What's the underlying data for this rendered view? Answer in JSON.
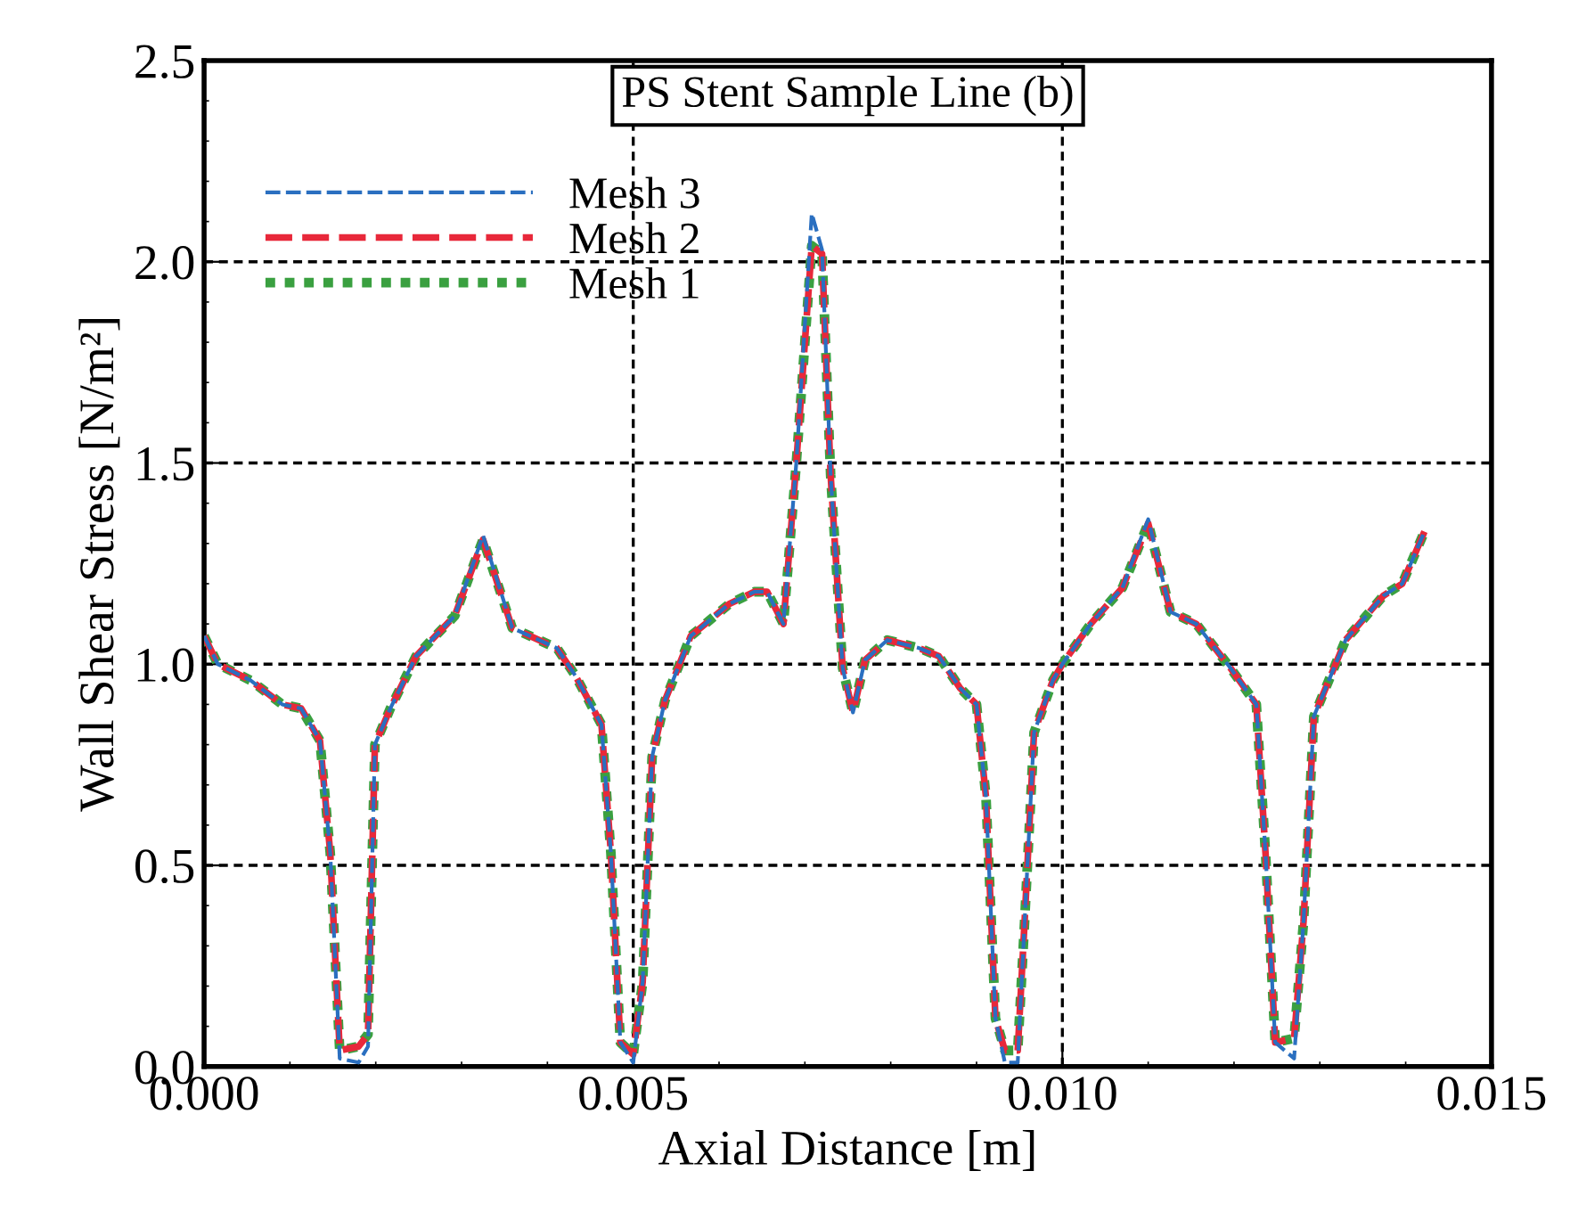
{
  "chart_data": {
    "type": "line",
    "title": "PS Stent Sample Line (b)",
    "xlabel": "Axial Distance [m]",
    "ylabel": "Wall Shear Stress [N/m²]",
    "x": [
      0,
      0.00016,
      0.00054,
      0.00091,
      0.00113,
      0.00135,
      0.00147,
      0.00158,
      0.0018,
      0.00191,
      0.00199,
      0.00217,
      0.00247,
      0.00292,
      0.00325,
      0.00359,
      0.00411,
      0.00433,
      0.00463,
      0.00474,
      0.00485,
      0.005,
      0.00511,
      0.00522,
      0.00537,
      0.00567,
      0.00612,
      0.00641,
      0.00656,
      0.00675,
      0.0069,
      0.00708,
      0.0072,
      0.0073,
      0.00744,
      0.00756,
      0.0077,
      0.00796,
      0.00833,
      0.00856,
      0.00881,
      0.009,
      0.00911,
      0.00922,
      0.00933,
      0.00948,
      0.00956,
      0.00967,
      0.00989,
      0.01,
      0.01033,
      0.0107,
      0.011,
      0.01126,
      0.01156,
      0.01196,
      0.01226,
      0.01237,
      0.01248,
      0.0127,
      0.01281,
      0.01293,
      0.0133,
      0.01374,
      0.01396,
      0.01422
    ],
    "series": [
      {
        "name": "Mesh 3",
        "color": "#2a6fc0",
        "line_style": "dashed",
        "values": [
          1.07,
          1.0,
          0.96,
          0.9,
          0.89,
          0.81,
          0.53,
          0.02,
          0.01,
          0.05,
          0.8,
          0.89,
          1.02,
          1.12,
          1.32,
          1.09,
          1.04,
          0.97,
          0.85,
          0.53,
          0.06,
          0.01,
          0.21,
          0.77,
          0.91,
          1.07,
          1.15,
          1.18,
          1.18,
          1.1,
          1.5,
          2.12,
          2.03,
          1.47,
          0.99,
          0.88,
          1.01,
          1.06,
          1.04,
          1.02,
          0.94,
          0.9,
          0.67,
          0.12,
          0.01,
          0.01,
          0.36,
          0.83,
          0.96,
          1.0,
          1.1,
          1.19,
          1.36,
          1.13,
          1.1,
          0.99,
          0.9,
          0.52,
          0.06,
          0.02,
          0.36,
          0.87,
          1.06,
          1.17,
          1.2,
          1.33
        ]
      },
      {
        "name": "Mesh 2",
        "color": "#e8283a",
        "line_style": "dashed",
        "values": [
          1.07,
          1.0,
          0.96,
          0.9,
          0.89,
          0.81,
          0.53,
          0.04,
          0.05,
          0.08,
          0.8,
          0.89,
          1.02,
          1.12,
          1.31,
          1.09,
          1.04,
          0.97,
          0.85,
          0.53,
          0.06,
          0.03,
          0.21,
          0.77,
          0.91,
          1.07,
          1.15,
          1.18,
          1.18,
          1.1,
          1.5,
          2.04,
          2.02,
          1.47,
          0.99,
          0.88,
          1.01,
          1.06,
          1.04,
          1.02,
          0.94,
          0.9,
          0.67,
          0.12,
          0.04,
          0.04,
          0.36,
          0.83,
          0.96,
          1.0,
          1.1,
          1.19,
          1.35,
          1.13,
          1.1,
          0.99,
          0.9,
          0.52,
          0.06,
          0.07,
          0.36,
          0.87,
          1.06,
          1.17,
          1.2,
          1.33
        ]
      },
      {
        "name": "Mesh 1",
        "color": "#3aa040",
        "line_style": "dotted",
        "values": [
          1.07,
          1.0,
          0.96,
          0.9,
          0.89,
          0.81,
          0.53,
          0.04,
          0.05,
          0.08,
          0.8,
          0.89,
          1.02,
          1.12,
          1.31,
          1.09,
          1.04,
          0.97,
          0.85,
          0.53,
          0.06,
          0.03,
          0.21,
          0.77,
          0.91,
          1.07,
          1.15,
          1.18,
          1.18,
          1.1,
          1.5,
          2.04,
          2.02,
          1.47,
          0.99,
          0.88,
          1.01,
          1.06,
          1.04,
          1.02,
          0.94,
          0.9,
          0.67,
          0.12,
          0.04,
          0.04,
          0.36,
          0.83,
          0.96,
          1.0,
          1.1,
          1.19,
          1.35,
          1.13,
          1.1,
          0.99,
          0.9,
          0.52,
          0.06,
          0.07,
          0.36,
          0.87,
          1.06,
          1.17,
          1.2,
          1.33
        ]
      }
    ],
    "xlim": [
      0,
      0.015
    ],
    "xticks": [
      {
        "value": 0,
        "label": "0.000"
      },
      0.005,
      {
        "value": 0.01,
        "label": "0.010"
      },
      0.015
    ],
    "ylim": [
      0,
      2.5
    ],
    "yticks": [
      {
        "value": 0,
        "label": "0.0"
      },
      0.5,
      {
        "value": 1,
        "label": "1.0"
      },
      1.5,
      {
        "value": 2,
        "label": "2.0"
      },
      2.5
    ],
    "grid": true,
    "legend": "top left"
  }
}
